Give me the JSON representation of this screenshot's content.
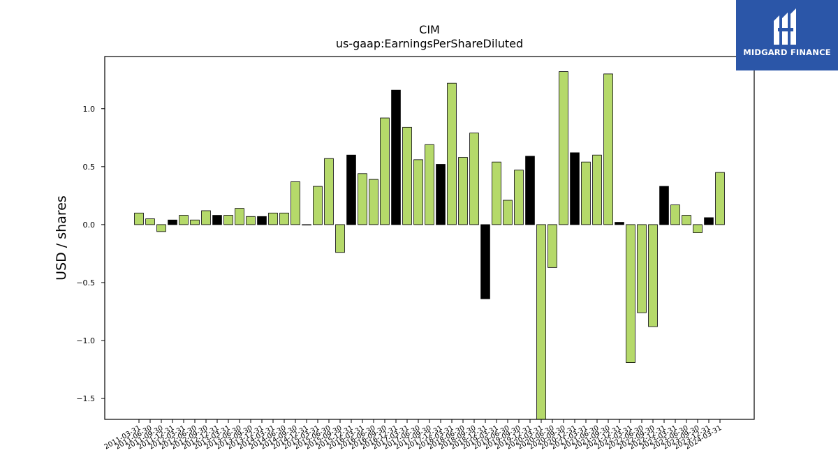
{
  "brand": {
    "name": "MIDGARD FINANCE",
    "logo_icon": "midgard-logo-icon",
    "background": "#2b56a8"
  },
  "colors": {
    "normal_bar": "#b5d96a",
    "highlight_bar": "#000000",
    "bar_edge": "#000000"
  },
  "chart_data": {
    "type": "bar",
    "title": "CIM",
    "subtitle": "us-gaap:EarningsPerShareDiluted",
    "ylabel": "USD / shares",
    "xlabel": "",
    "ylim": [
      -1.68,
      1.45
    ],
    "yticks": [
      -1.5,
      -1.0,
      -0.5,
      0.0,
      0.5,
      1.0
    ],
    "ytick_labels": [
      "−1.5",
      "−1.0",
      "−0.5",
      "0.0",
      "0.5",
      "1.0"
    ],
    "grid": false,
    "categories": [
      "2011-03-31",
      "2011-06-30",
      "2011-09-30",
      "2011-12-31",
      "2012-03-31",
      "2012-06-30",
      "2012-09-30",
      "2012-12-31",
      "2013-03-31",
      "2013-06-30",
      "2013-09-30",
      "2013-12-31",
      "2014-03-31",
      "2014-06-30",
      "2014-09-30",
      "2014-12-31",
      "2015-03-31",
      "2015-06-30",
      "2015-09-30",
      "2015-12-31",
      "2016-03-31",
      "2016-06-30",
      "2016-09-30",
      "2016-12-31",
      "2017-03-31",
      "2017-06-30",
      "2017-09-30",
      "2017-12-31",
      "2018-03-31",
      "2018-06-30",
      "2018-09-30",
      "2018-12-31",
      "2019-03-31",
      "2019-06-30",
      "2019-09-30",
      "2019-12-31",
      "2020-03-31",
      "2020-06-30",
      "2020-09-30",
      "2020-12-31",
      "2021-03-31",
      "2021-06-30",
      "2021-09-30",
      "2021-12-31",
      "2022-03-31",
      "2022-06-30",
      "2022-09-30",
      "2022-12-31",
      "2023-03-31",
      "2023-06-30",
      "2023-09-30",
      "2023-12-31",
      "2024-03-31"
    ],
    "values": [
      0.1,
      0.05,
      -0.06,
      0.04,
      0.08,
      0.04,
      0.12,
      0.08,
      0.08,
      0.14,
      0.07,
      0.07,
      0.1,
      0.1,
      0.37,
      0.0,
      0.33,
      0.57,
      -0.24,
      0.6,
      0.44,
      0.39,
      0.92,
      1.16,
      0.84,
      0.56,
      0.69,
      0.52,
      1.22,
      0.58,
      0.79,
      -0.64,
      0.54,
      0.21,
      0.47,
      0.59,
      -1.68,
      -0.37,
      1.32,
      0.62,
      0.54,
      0.6,
      1.3,
      0.02,
      -1.19,
      -0.76,
      -0.88,
      0.33,
      0.17,
      0.08,
      -0.07,
      0.06,
      0.45
    ],
    "highlight": [
      false,
      false,
      false,
      true,
      false,
      false,
      false,
      true,
      false,
      false,
      false,
      true,
      false,
      false,
      false,
      true,
      false,
      false,
      false,
      true,
      false,
      false,
      false,
      true,
      false,
      false,
      false,
      true,
      false,
      false,
      false,
      true,
      false,
      false,
      false,
      true,
      false,
      false,
      false,
      true,
      false,
      false,
      false,
      true,
      false,
      false,
      false,
      true,
      false,
      false,
      false,
      true,
      false
    ]
  }
}
